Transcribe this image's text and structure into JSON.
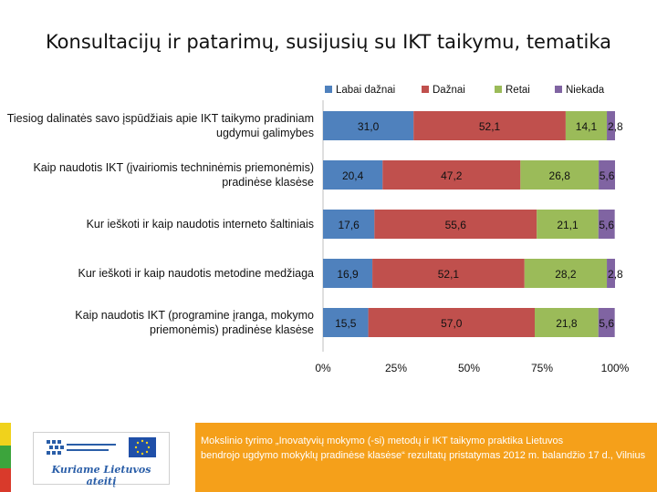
{
  "title": "Konsultacijų ir patarimų, susijusių su IKT taikymu, tematika",
  "chart_data": {
    "type": "bar",
    "orientation": "horizontal",
    "stacked": "percent",
    "categories": [
      "Tiesiog dalinatės savo įspūdžiais apie IKT taikymo pradiniam ugdymui galimybes",
      "Kaip naudotis IKT (įvairiomis techninėmis priemonėmis) pradinėse klasėse",
      "Kur ieškoti ir kaip naudotis interneto šaltiniais",
      "Kur ieškoti ir kaip naudotis metodine medžiaga",
      "Kaip naudotis IKT (programine įranga, mokymo priemonėmis) pradinėse klasėse"
    ],
    "series": [
      {
        "name": "Labai dažnai",
        "color": "#4f81bd",
        "values": [
          31.0,
          20.4,
          17.6,
          16.9,
          15.5
        ],
        "labels": [
          "31,0",
          "20,4",
          "17,6",
          "16,9",
          "15,5"
        ]
      },
      {
        "name": "Dažnai",
        "color": "#c0504d",
        "values": [
          52.1,
          47.2,
          55.6,
          52.1,
          57.0
        ],
        "labels": [
          "52,1",
          "47,2",
          "55,6",
          "52,1",
          "57,0"
        ]
      },
      {
        "name": "Retai",
        "color": "#9bbb59",
        "values": [
          14.1,
          26.8,
          21.1,
          28.2,
          21.8
        ],
        "labels": [
          "14,1",
          "26,8",
          "21,1",
          "28,2",
          "21,8"
        ]
      },
      {
        "name": "Niekada",
        "color": "#8064a2",
        "values": [
          2.8,
          5.6,
          5.6,
          2.8,
          5.6
        ],
        "labels": [
          "2,8",
          "5,6",
          "5,6",
          "2,8",
          "5,6"
        ]
      }
    ],
    "x_ticks": [
      "0%",
      "25%",
      "50%",
      "75%",
      "100%"
    ],
    "xlim": [
      0,
      100
    ],
    "legend_position": "top",
    "grid": false
  },
  "footer": {
    "logo_slogan": "Kuriame Lietuvos ateitį",
    "caption_line1": "Mokslinio tyrimo „Inovatyvių mokymo (-si) metodų ir IKT taikymo praktika Lietuvos",
    "caption_line2": "bendrojo ugdymo mokyklų pradinėse klasėse“ rezultatų pristatymas 2012 m. balandžio 17 d., Vilnius",
    "stripe_colors": [
      "#f0d21c",
      "#3ca43c",
      "#d93a2b"
    ],
    "text_background": "#f5a01a"
  }
}
